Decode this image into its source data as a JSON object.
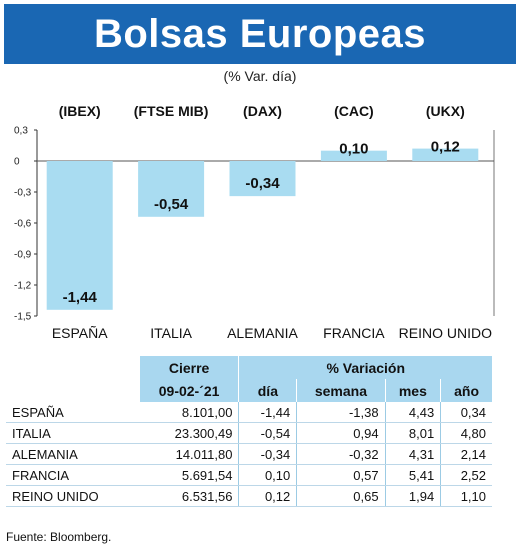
{
  "header": {
    "title": "Bolsas Europeas",
    "subtitle": "(% Var. día)"
  },
  "chart_data": {
    "type": "bar",
    "categories": [
      "ESPAÑA",
      "ITALIA",
      "ALEMANIA",
      "FRANCIA",
      "REINO UNIDO"
    ],
    "index_labels": [
      "(IBEX)",
      "(FTSE MIB)",
      "(DAX)",
      "(CAC)",
      "(UKX)"
    ],
    "values": [
      -1.44,
      -0.54,
      -0.34,
      0.1,
      0.12
    ],
    "value_labels": [
      "-1,44",
      "-0,54",
      "-0,34",
      "0,10",
      "0,12"
    ],
    "y_ticks": [
      "0,3",
      "0",
      "-0,3",
      "-0,6",
      "-0,9",
      "-1,2",
      "-1,5"
    ],
    "ylim": [
      -1.5,
      0.3
    ],
    "bar_color": "#a9dcf1"
  },
  "table": {
    "group_headers": [
      "Cierre",
      "% Variación"
    ],
    "sub_headers": [
      "09-02-´21",
      "día",
      "semana",
      "mes",
      "año"
    ],
    "rows": [
      {
        "name": "ESPAÑA",
        "cierre": "8.101,00",
        "dia": "-1,44",
        "semana": "-1,38",
        "mes": "4,43",
        "anio": "0,34"
      },
      {
        "name": "ITALIA",
        "cierre": "23.300,49",
        "dia": "-0,54",
        "semana": "0,94",
        "mes": "8,01",
        "anio": "4,80"
      },
      {
        "name": "ALEMANIA",
        "cierre": "14.011,80",
        "dia": "-0,34",
        "semana": "-0,32",
        "mes": "4,31",
        "anio": "2,14"
      },
      {
        "name": "FRANCIA",
        "cierre": "5.691,54",
        "dia": "0,10",
        "semana": "0,57",
        "mes": "5,41",
        "anio": "2,52"
      },
      {
        "name": "REINO UNIDO",
        "cierre": "6.531,56",
        "dia": "0,12",
        "semana": "0,65",
        "mes": "1,94",
        "anio": "1,10"
      }
    ]
  },
  "source": "Fuente: Bloomberg."
}
